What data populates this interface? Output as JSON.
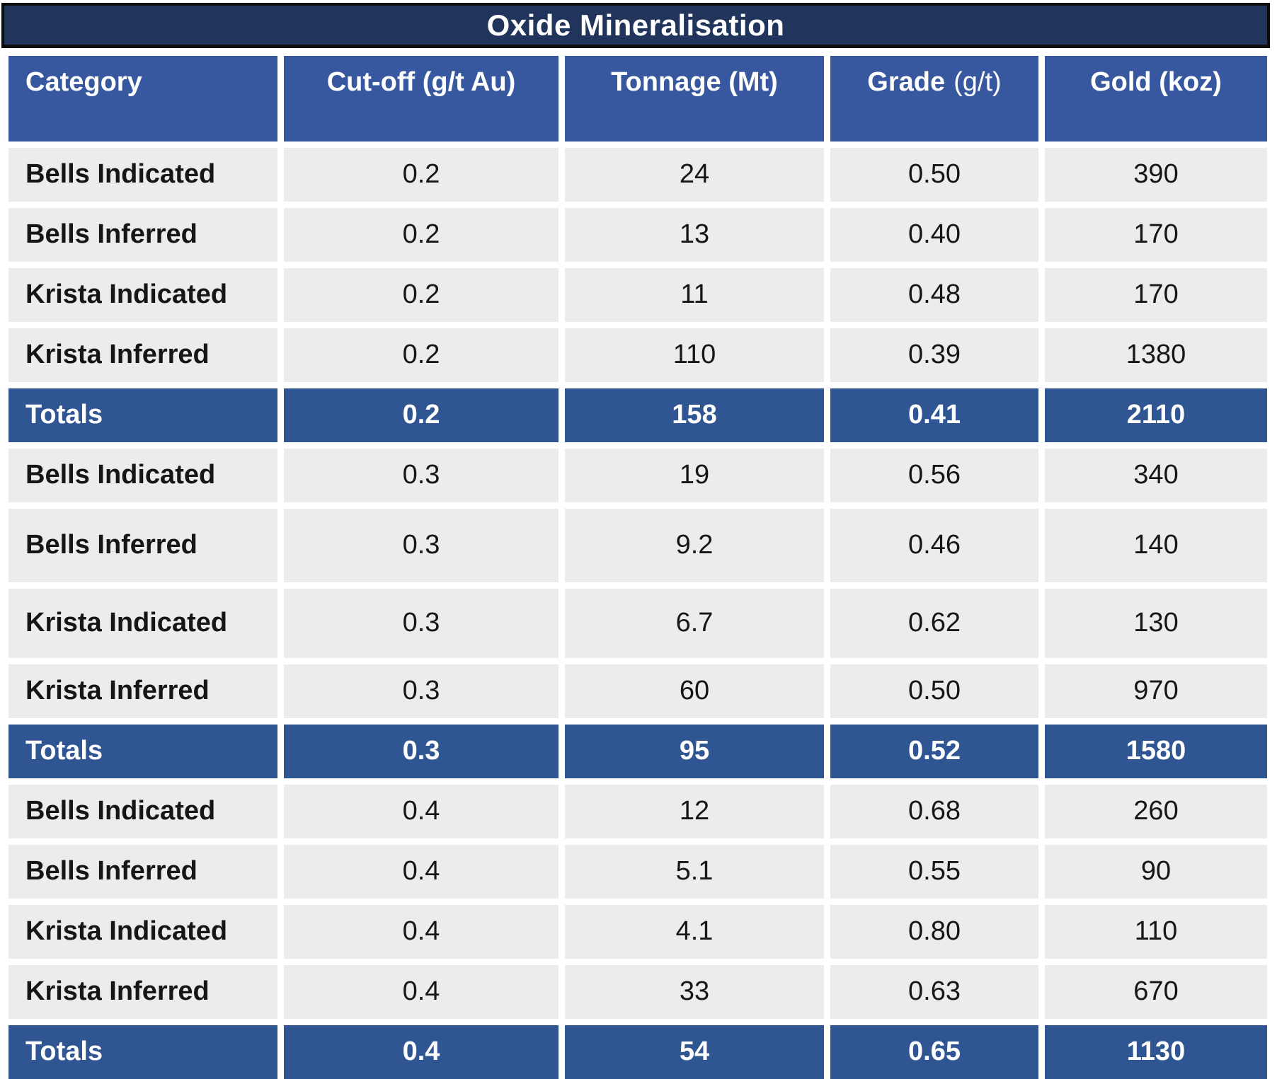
{
  "chart_data": {
    "type": "table",
    "title": "Oxide Mineralisation",
    "columns": [
      {
        "label": "Category"
      },
      {
        "label": "Cut-off (g/t Au)"
      },
      {
        "label": "Tonnage (Mt)"
      },
      {
        "label": "Grade",
        "suffix": "(g/t)"
      },
      {
        "label": "Gold (koz)"
      }
    ],
    "rows": [
      {
        "category": "Bells Indicated",
        "cutoff": "0.2",
        "tonnage": "24",
        "grade": "0.50",
        "gold": "390",
        "is_total": false
      },
      {
        "category": "Bells Inferred",
        "cutoff": "0.2",
        "tonnage": "13",
        "grade": "0.40",
        "gold": "170",
        "is_total": false
      },
      {
        "category": "Krista Indicated",
        "cutoff": "0.2",
        "tonnage": "11",
        "grade": "0.48",
        "gold": "170",
        "is_total": false
      },
      {
        "category": "Krista Inferred",
        "cutoff": "0.2",
        "tonnage": "110",
        "grade": "0.39",
        "gold": "1380",
        "is_total": false
      },
      {
        "category": "Totals",
        "cutoff": "0.2",
        "tonnage": "158",
        "grade": "0.41",
        "gold": "2110",
        "is_total": true
      },
      {
        "category": "Bells Indicated",
        "cutoff": "0.3",
        "tonnage": "19",
        "grade": "0.56",
        "gold": "340",
        "is_total": false
      },
      {
        "category": "Bells Inferred",
        "cutoff": "0.3",
        "tonnage": "9.2",
        "grade": "0.46",
        "gold": "140",
        "is_total": false
      },
      {
        "category": "Krista Indicated",
        "cutoff": "0.3",
        "tonnage": "6.7",
        "grade": "0.62",
        "gold": "130",
        "is_total": false
      },
      {
        "category": "Krista Inferred",
        "cutoff": "0.3",
        "tonnage": "60",
        "grade": "0.50",
        "gold": "970",
        "is_total": false
      },
      {
        "category": "Totals",
        "cutoff": "0.3",
        "tonnage": "95",
        "grade": "0.52",
        "gold": "1580",
        "is_total": true
      },
      {
        "category": "Bells Indicated",
        "cutoff": "0.4",
        "tonnage": "12",
        "grade": "0.68",
        "gold": "260",
        "is_total": false
      },
      {
        "category": "Bells Inferred",
        "cutoff": "0.4",
        "tonnage": "5.1",
        "grade": "0.55",
        "gold": "90",
        "is_total": false
      },
      {
        "category": "Krista Indicated",
        "cutoff": "0.4",
        "tonnage": "4.1",
        "grade": "0.80",
        "gold": "110",
        "is_total": false
      },
      {
        "category": "Krista Inferred",
        "cutoff": "0.4",
        "tonnage": "33",
        "grade": "0.63",
        "gold": "670",
        "is_total": false
      },
      {
        "category": "Totals",
        "cutoff": "0.4",
        "tonnage": "54",
        "grade": "0.65",
        "gold": "1130",
        "is_total": true
      }
    ]
  },
  "colors": {
    "title_bg": "#20345C",
    "header_bg": "#37589F",
    "totals_bg": "#2F5592",
    "row_bg": "#ECECEC",
    "border_black": "#0D0D0D",
    "header_text": "#FFFFFF",
    "body_text": "#161616"
  }
}
